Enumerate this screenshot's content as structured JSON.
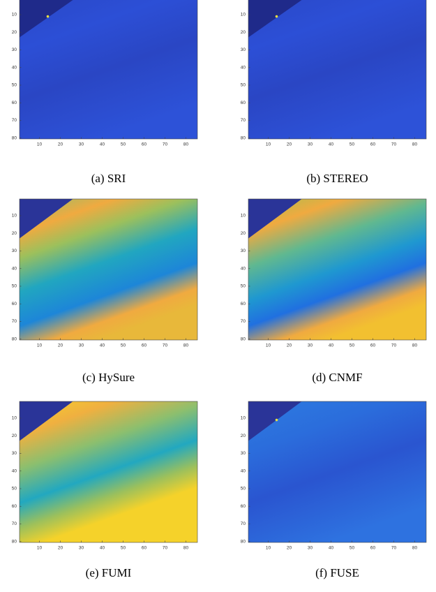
{
  "chart_data": [
    {
      "type": "heatmap",
      "caption": "(a) SRI",
      "xlim": [
        0.5,
        85.5
      ],
      "ylim": [
        0.5,
        80.5
      ],
      "xticks": [
        10,
        20,
        30,
        40,
        50,
        60,
        70,
        80
      ],
      "yticks": [
        10,
        20,
        30,
        40,
        50,
        60,
        70,
        80
      ]
    },
    {
      "type": "heatmap",
      "caption": "(b) STEREO",
      "xlim": [
        0.5,
        85.5
      ],
      "ylim": [
        0.5,
        80.5
      ],
      "xticks": [
        10,
        20,
        30,
        40,
        50,
        60,
        70,
        80
      ],
      "yticks": [
        10,
        20,
        30,
        40,
        50,
        60,
        70,
        80
      ]
    },
    {
      "type": "heatmap",
      "caption": "(c) HySure",
      "xlim": [
        0.5,
        85.5
      ],
      "ylim": [
        0.5,
        80.5
      ],
      "xticks": [
        10,
        20,
        30,
        40,
        50,
        60,
        70,
        80
      ],
      "yticks": [
        10,
        20,
        30,
        40,
        50,
        60,
        70,
        80
      ]
    },
    {
      "type": "heatmap",
      "caption": "(d) CNMF",
      "xlim": [
        0.5,
        85.5
      ],
      "ylim": [
        0.5,
        80.5
      ],
      "xticks": [
        10,
        20,
        30,
        40,
        50,
        60,
        70,
        80
      ],
      "yticks": [
        10,
        20,
        30,
        40,
        50,
        60,
        70,
        80
      ]
    },
    {
      "type": "heatmap",
      "caption": "(e) FUMI",
      "xlim": [
        0.5,
        85.5
      ],
      "ylim": [
        0.5,
        80.5
      ],
      "xticks": [
        10,
        20,
        30,
        40,
        50,
        60,
        70,
        80
      ],
      "yticks": [
        10,
        20,
        30,
        40,
        50,
        60,
        70,
        80
      ]
    },
    {
      "type": "heatmap",
      "caption": "(f) FUSE",
      "xlim": [
        0.5,
        85.5
      ],
      "ylim": [
        0.5,
        80.5
      ],
      "xticks": [
        10,
        20,
        30,
        40,
        50,
        60,
        70,
        80
      ],
      "yticks": [
        10,
        20,
        30,
        40,
        50,
        60,
        70,
        80
      ]
    }
  ]
}
